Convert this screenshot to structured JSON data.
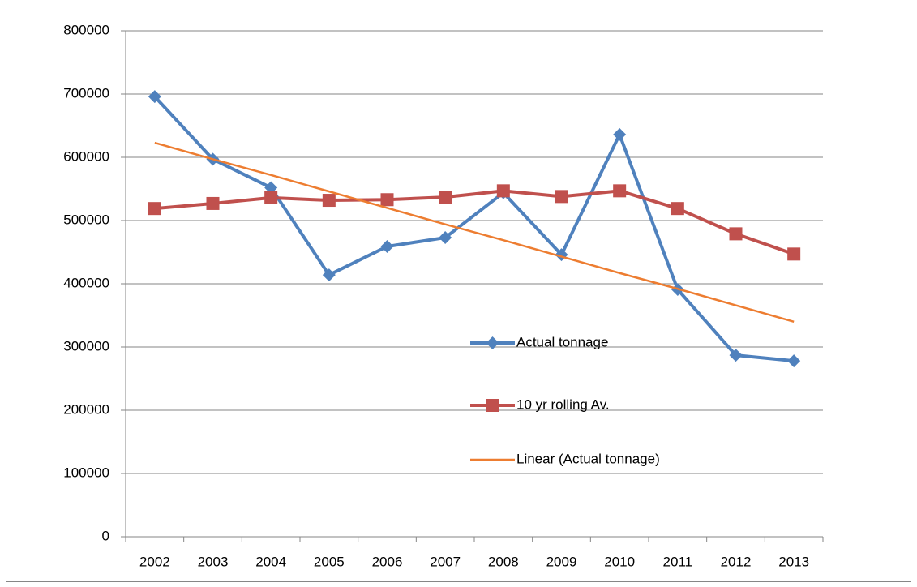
{
  "chart_data": {
    "type": "line",
    "categories": [
      "2002",
      "2003",
      "2004",
      "2005",
      "2006",
      "2007",
      "2008",
      "2009",
      "2010",
      "2011",
      "2012",
      "2013"
    ],
    "series": [
      {
        "name": "Actual tonnage",
        "color": "#4f81bd",
        "marker": "diamond",
        "values": [
          696000,
          597000,
          552000,
          414000,
          459000,
          473000,
          544000,
          446000,
          636000,
          391000,
          287000,
          278000
        ]
      },
      {
        "name": "10 yr rolling Av.",
        "color": "#c0504d",
        "marker": "square",
        "values": [
          519000,
          527000,
          536000,
          532000,
          533000,
          537000,
          547000,
          538000,
          547000,
          519000,
          479000,
          447000
        ]
      },
      {
        "name": "Linear (Actual tonnage)",
        "color": "#ed7d31",
        "marker": "none",
        "values": [
          623000,
          597000,
          572000,
          546000,
          520000,
          494000,
          469000,
          443000,
          417000,
          392000,
          366000,
          340000
        ]
      }
    ],
    "ylim": [
      0,
      800000
    ],
    "yticks": [
      0,
      100000,
      200000,
      300000,
      400000,
      500000,
      600000,
      700000,
      800000
    ],
    "grid": true
  }
}
